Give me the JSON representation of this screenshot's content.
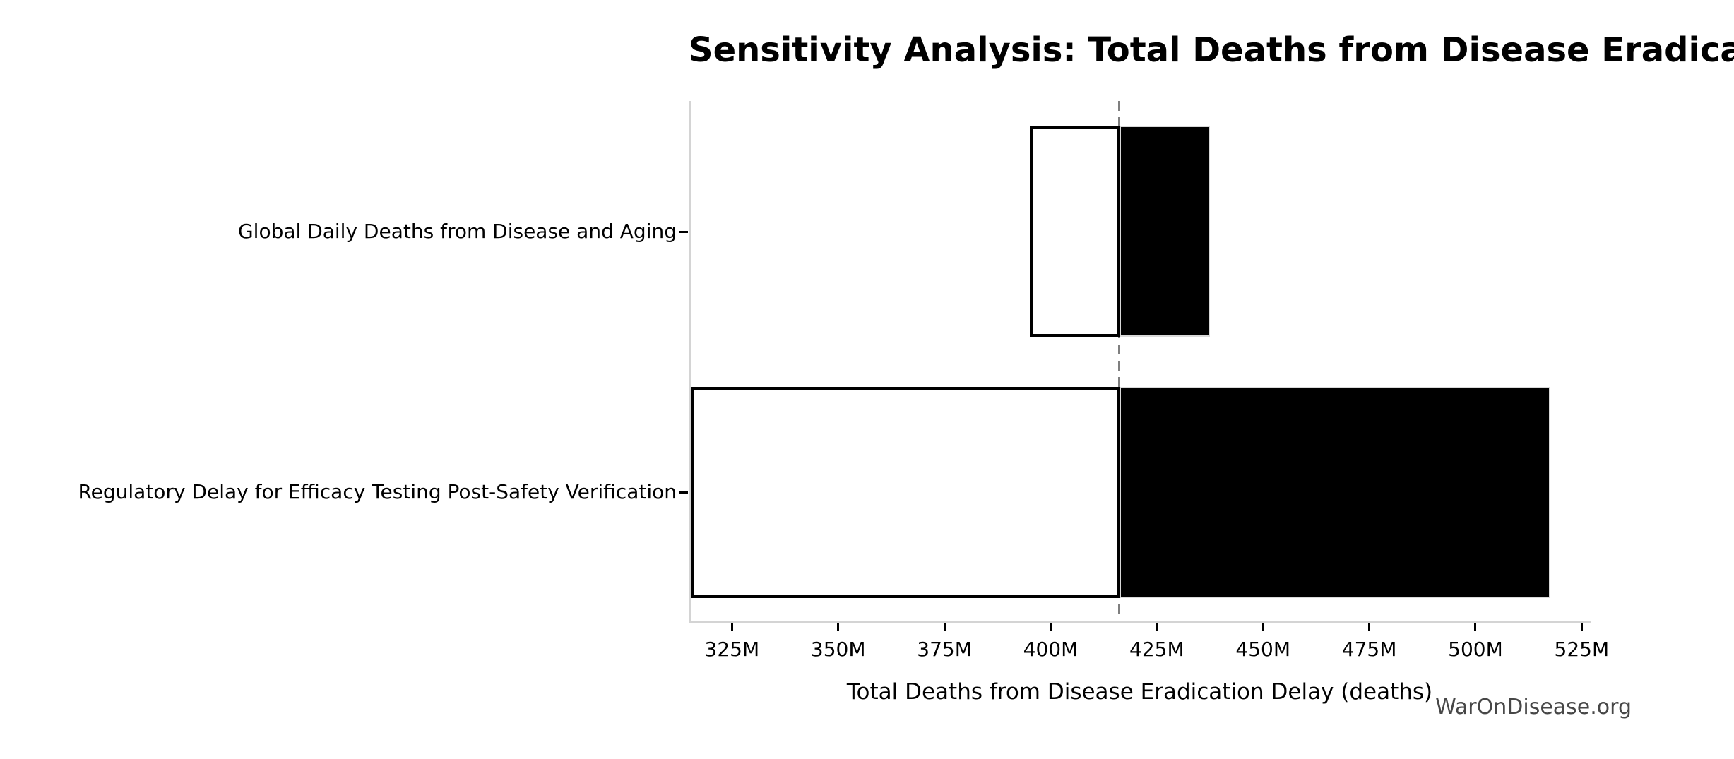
{
  "chart_data": {
    "type": "bar",
    "orientation": "horizontal",
    "variant": "tornado-sensitivity",
    "title": "Sensitivity Analysis: Total Deaths from Disease Eradication Delay",
    "xlabel": "Total Deaths from Disease Eradication Delay (deaths)",
    "watermark": "WarOnDisease.org",
    "units": "deaths, values in millions (M)",
    "baseline_value": 415.7,
    "xlim": [
      314.8,
      527.1
    ],
    "grid": false,
    "legend": null,
    "x_ticks": [
      {
        "value": 325,
        "label": "325M"
      },
      {
        "value": 350,
        "label": "350M"
      },
      {
        "value": 375,
        "label": "375M"
      },
      {
        "value": 400,
        "label": "400M"
      },
      {
        "value": 425,
        "label": "425M"
      },
      {
        "value": 450,
        "label": "450M"
      },
      {
        "value": 475,
        "label": "475M"
      },
      {
        "value": 500,
        "label": "500M"
      },
      {
        "value": 525,
        "label": "525M"
      }
    ],
    "bars": [
      {
        "label": "Global Daily Deaths from Disease and Aging",
        "low": 394.6,
        "high": 437.0
      },
      {
        "label": "Regulatory Delay for Efficacy Testing Post-Safety Verification",
        "low": 313.8,
        "high": 517.1
      }
    ],
    "colors": {
      "low_segment_fill": "#ffffff",
      "low_segment_edge": "#000000",
      "high_segment_fill": "#000000",
      "high_segment_edge": "#d9d9d9",
      "baseline_line": "#7f7f7f",
      "axis_spine": "#d4d4d4",
      "tick_mark": "#000000",
      "text": "#000000",
      "watermark_text": "#474747",
      "background": "#ffffff"
    }
  }
}
